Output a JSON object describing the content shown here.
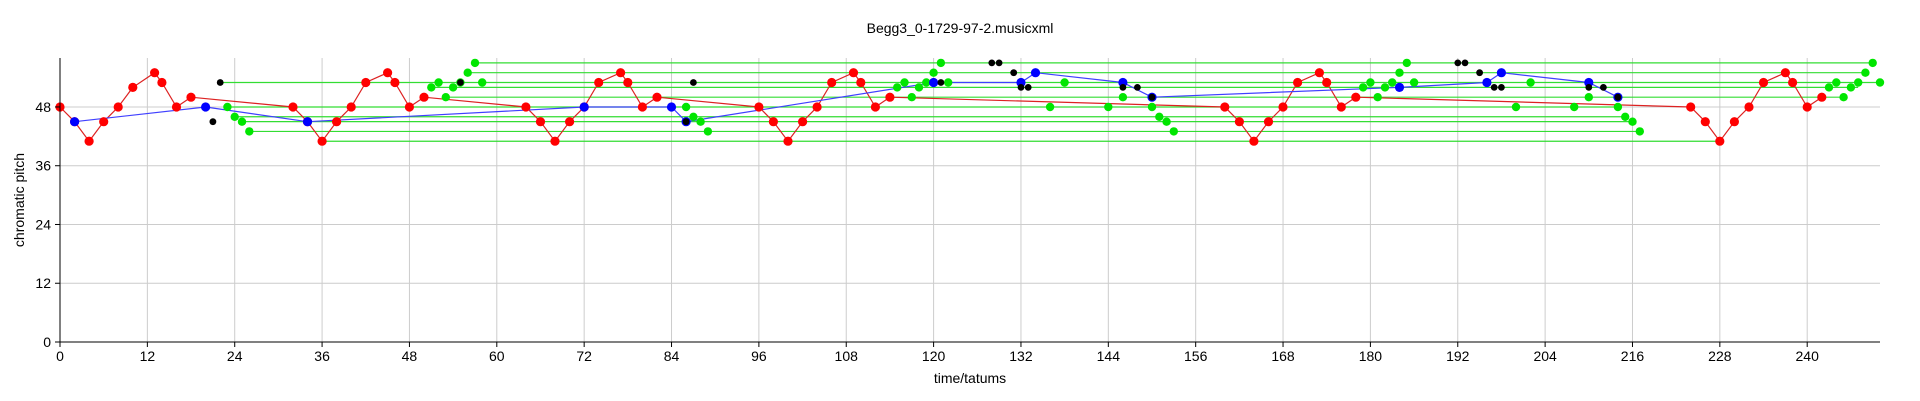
{
  "chart_data": {
    "type": "scatter",
    "title": "Begg3_0-1729-97-2.musicxml",
    "xlabel": "time/tatums",
    "ylabel": "chromatic pitch",
    "xlim": [
      0,
      250
    ],
    "ylim": [
      0,
      58
    ],
    "xticks": [
      0,
      12,
      24,
      36,
      48,
      60,
      72,
      84,
      96,
      108,
      120,
      132,
      144,
      156,
      168,
      180,
      192,
      204,
      216,
      228,
      240
    ],
    "yticks": [
      0,
      12,
      24,
      36,
      48
    ],
    "grid": true,
    "colors": {
      "red": "#ff0000",
      "green": "#00e600",
      "blue": "#0000ff",
      "black": "#000000",
      "red_line": "#dd2222",
      "green_line": "#33dd33",
      "blue_line": "#4040ff",
      "grid": "#cccccc"
    },
    "series": [
      {
        "color": "red",
        "connected": true,
        "points": [
          [
            0,
            48
          ],
          [
            2,
            45
          ],
          [
            4,
            41
          ],
          [
            6,
            45
          ],
          [
            8,
            48
          ],
          [
            10,
            52
          ],
          [
            13,
            55
          ],
          [
            14,
            53
          ],
          [
            16,
            48
          ],
          [
            18,
            50
          ],
          [
            32,
            48
          ],
          [
            34,
            45
          ],
          [
            36,
            41
          ],
          [
            38,
            45
          ],
          [
            40,
            48
          ],
          [
            42,
            53
          ],
          [
            45,
            55
          ],
          [
            46,
            53
          ],
          [
            48,
            48
          ],
          [
            50,
            50
          ],
          [
            64,
            48
          ],
          [
            66,
            45
          ],
          [
            68,
            41
          ],
          [
            70,
            45
          ],
          [
            72,
            48
          ],
          [
            74,
            53
          ],
          [
            77,
            55
          ],
          [
            78,
            53
          ],
          [
            80,
            48
          ],
          [
            82,
            50
          ],
          [
            96,
            48
          ],
          [
            98,
            45
          ],
          [
            100,
            41
          ],
          [
            102,
            45
          ],
          [
            104,
            48
          ],
          [
            106,
            53
          ],
          [
            109,
            55
          ],
          [
            110,
            53
          ],
          [
            112,
            48
          ],
          [
            114,
            50
          ],
          [
            160,
            48
          ],
          [
            162,
            45
          ],
          [
            164,
            41
          ],
          [
            166,
            45
          ],
          [
            168,
            48
          ],
          [
            170,
            53
          ],
          [
            173,
            55
          ],
          [
            174,
            53
          ],
          [
            176,
            48
          ],
          [
            178,
            50
          ],
          [
            224,
            48
          ],
          [
            226,
            45
          ],
          [
            228,
            41
          ],
          [
            230,
            45
          ],
          [
            232,
            48
          ],
          [
            234,
            53
          ],
          [
            237,
            55
          ],
          [
            238,
            53
          ],
          [
            240,
            48
          ],
          [
            242,
            50
          ]
        ]
      },
      {
        "color": "green",
        "connected": false,
        "points": [
          [
            23,
            48
          ],
          [
            24,
            46
          ],
          [
            25,
            45
          ],
          [
            26,
            43
          ],
          [
            51,
            52
          ],
          [
            52,
            53
          ],
          [
            53,
            50
          ],
          [
            54,
            52
          ],
          [
            55,
            53
          ],
          [
            56,
            55
          ],
          [
            57,
            57
          ],
          [
            58,
            53
          ],
          [
            86,
            48
          ],
          [
            87,
            46
          ],
          [
            88,
            45
          ],
          [
            89,
            43
          ],
          [
            115,
            52
          ],
          [
            116,
            53
          ],
          [
            117,
            50
          ],
          [
            118,
            52
          ],
          [
            119,
            53
          ],
          [
            120,
            55
          ],
          [
            121,
            57
          ],
          [
            122,
            53
          ],
          [
            136,
            48
          ],
          [
            138,
            53
          ],
          [
            144,
            48
          ],
          [
            146,
            50
          ],
          [
            150,
            48
          ],
          [
            151,
            46
          ],
          [
            152,
            45
          ],
          [
            153,
            43
          ],
          [
            179,
            52
          ],
          [
            180,
            53
          ],
          [
            181,
            50
          ],
          [
            182,
            52
          ],
          [
            183,
            53
          ],
          [
            184,
            55
          ],
          [
            185,
            57
          ],
          [
            186,
            53
          ],
          [
            200,
            48
          ],
          [
            202,
            53
          ],
          [
            208,
            48
          ],
          [
            210,
            50
          ],
          [
            214,
            48
          ],
          [
            215,
            46
          ],
          [
            216,
            45
          ],
          [
            217,
            43
          ],
          [
            243,
            52
          ],
          [
            244,
            53
          ],
          [
            245,
            50
          ],
          [
            246,
            52
          ],
          [
            247,
            53
          ],
          [
            248,
            55
          ],
          [
            249,
            57
          ],
          [
            250,
            53
          ]
        ]
      },
      {
        "color": "blue",
        "connected": true,
        "points": [
          [
            2,
            45
          ],
          [
            20,
            48
          ],
          [
            34,
            45
          ],
          [
            72,
            48
          ],
          [
            84,
            48
          ],
          [
            86,
            45
          ],
          [
            120,
            53
          ],
          [
            132,
            53
          ],
          [
            134,
            55
          ],
          [
            146,
            53
          ],
          [
            150,
            50
          ],
          [
            184,
            52
          ],
          [
            196,
            53
          ],
          [
            198,
            55
          ],
          [
            210,
            53
          ],
          [
            214,
            50
          ]
        ]
      },
      {
        "color": "black",
        "connected": false,
        "points": [
          [
            21,
            45
          ],
          [
            22,
            53
          ],
          [
            55,
            53
          ],
          [
            86,
            45
          ],
          [
            87,
            53
          ],
          [
            121,
            53
          ],
          [
            128,
            57
          ],
          [
            129,
            57
          ],
          [
            131,
            55
          ],
          [
            132,
            52
          ],
          [
            133,
            52
          ],
          [
            146,
            52
          ],
          [
            148,
            52
          ],
          [
            150,
            50
          ],
          [
            192,
            57
          ],
          [
            193,
            57
          ],
          [
            195,
            55
          ],
          [
            197,
            52
          ],
          [
            198,
            52
          ],
          [
            210,
            52
          ],
          [
            212,
            52
          ],
          [
            214,
            50
          ]
        ]
      }
    ],
    "horizontal_lines": [
      {
        "y": 57,
        "x": [
          57,
          249
        ]
      },
      {
        "y": 55,
        "x": [
          56,
          248
        ]
      },
      {
        "y": 53,
        "x": [
          22,
          250
        ]
      },
      {
        "y": 52,
        "x": [
          51,
          247
        ]
      },
      {
        "y": 50,
        "x": [
          53,
          245
        ]
      },
      {
        "y": 48,
        "x": [
          23,
          214
        ]
      },
      {
        "y": 46,
        "x": [
          24,
          215
        ]
      },
      {
        "y": 45,
        "x": [
          25,
          216
        ]
      },
      {
        "y": 43,
        "x": [
          26,
          217
        ]
      },
      {
        "y": 41,
        "x": [
          36,
          228
        ]
      }
    ]
  }
}
